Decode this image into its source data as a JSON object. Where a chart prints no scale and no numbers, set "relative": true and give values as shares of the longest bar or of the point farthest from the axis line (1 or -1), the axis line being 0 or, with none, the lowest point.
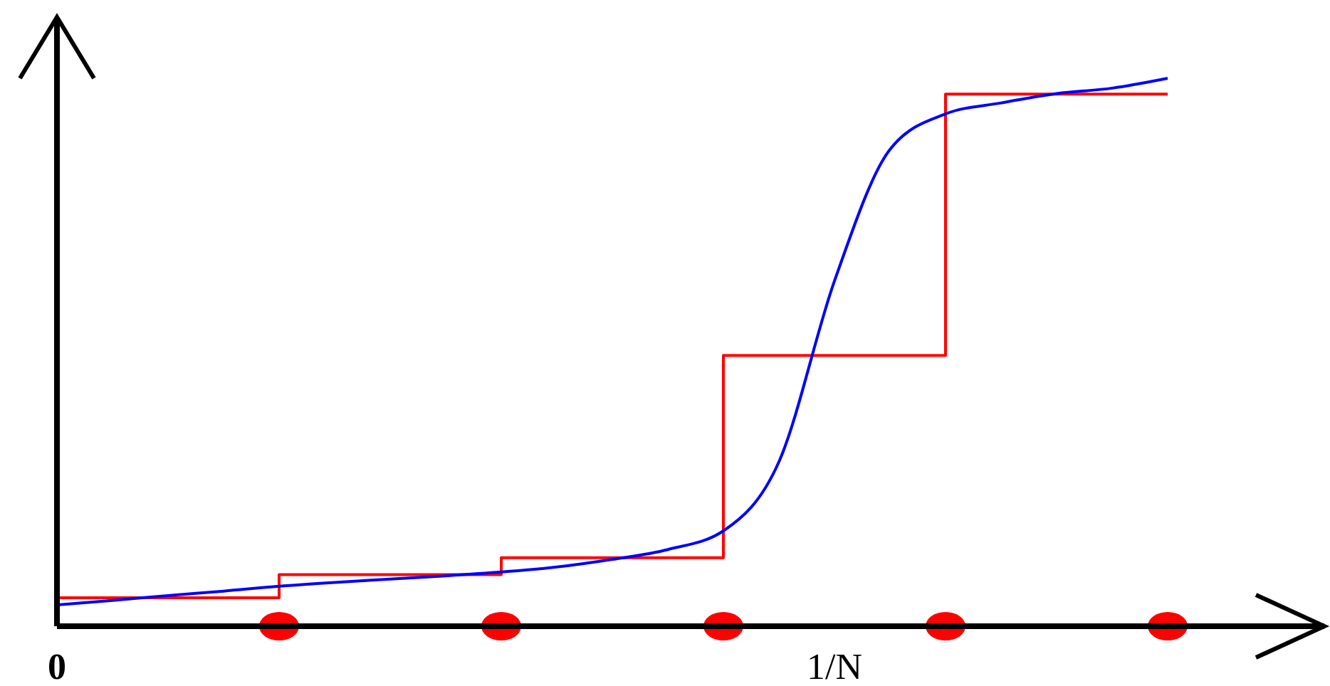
{
  "chart_data": {
    "type": "line",
    "relative": true,
    "categories": [
      "0",
      null,
      null,
      null,
      null,
      null,
      null,
      null,
      null,
      null,
      null,
      null,
      null,
      null,
      "1/N",
      null,
      null,
      null,
      null,
      null,
      null,
      null,
      null
    ],
    "series": [
      {
        "type": "step",
        "color": "#ff0000",
        "values": [
          0.052,
          0.052,
          0.052,
          0.052,
          0.094,
          0.094,
          0.094,
          0.094,
          0.125,
          0.125,
          0.125,
          0.125,
          0.494,
          0.494,
          0.494,
          0.494,
          0.971,
          0.971,
          0.971,
          0.971,
          0.971,
          null,
          null
        ]
      },
      {
        "color": "#0000ff",
        "values": [
          0.039,
          0.047,
          0.056,
          0.064,
          0.073,
          0.08,
          0.086,
          0.092,
          0.099,
          0.108,
          0.122,
          0.14,
          0.174,
          0.3,
          0.63,
          0.87,
          0.935,
          0.955,
          0.972,
          0.982,
          1,
          null,
          null
        ]
      },
      {
        "type": "scatter",
        "color": "#ff0000",
        "marker": "circle",
        "values": [
          null,
          null,
          null,
          null,
          0,
          null,
          null,
          null,
          0,
          null,
          null,
          null,
          0,
          null,
          null,
          null,
          0,
          null,
          null,
          null,
          0,
          null,
          null
        ]
      }
    ]
  }
}
